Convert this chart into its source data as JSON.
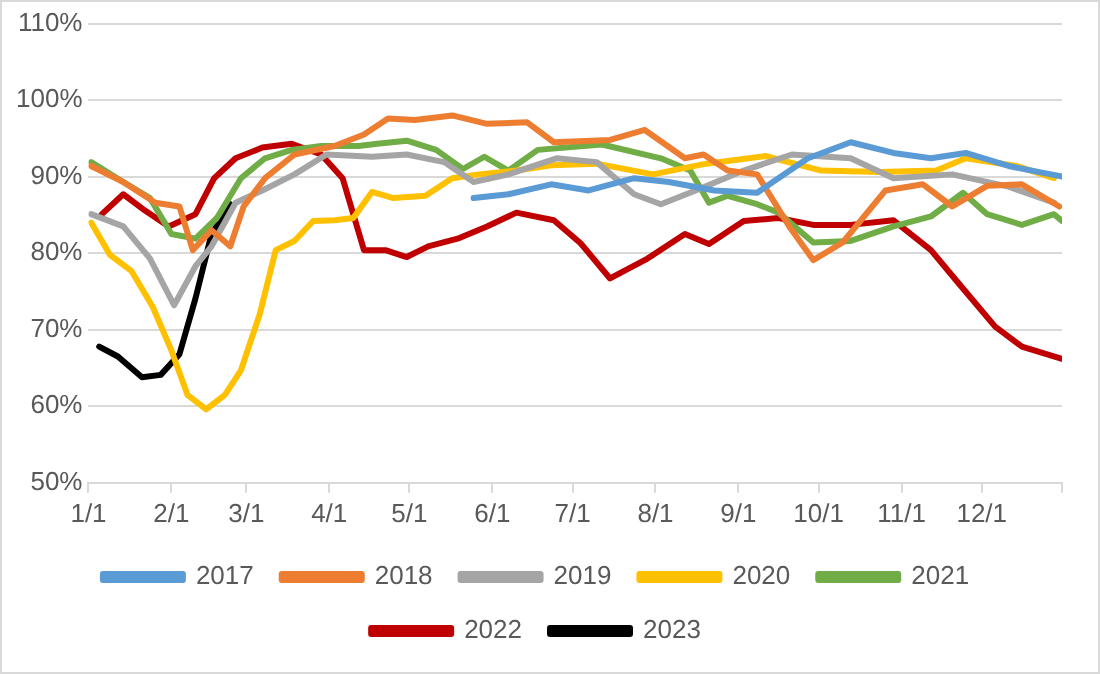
{
  "chart_data": {
    "type": "line",
    "xlim": [
      "--01-01",
      "--12-31"
    ],
    "xticks": [
      {
        "value": "--01-01",
        "label": "1/1"
      },
      {
        "value": "--02-01",
        "label": "2/1"
      },
      {
        "value": "--03-01",
        "label": "3/1"
      },
      {
        "value": "--04-01",
        "label": "4/1"
      },
      {
        "value": "--05-01",
        "label": "5/1"
      },
      {
        "value": "--06-01",
        "label": "6/1"
      },
      {
        "value": "--07-01",
        "label": "7/1"
      },
      {
        "value": "--08-01",
        "label": "8/1"
      },
      {
        "value": "--09-01",
        "label": "9/1"
      },
      {
        "value": "--10-01",
        "label": "10/1"
      },
      {
        "value": "--11-01",
        "label": "11/1"
      },
      {
        "value": "--12-01",
        "label": "12/1"
      },
      {
        "value": "--12-31",
        "label": null
      }
    ],
    "ylim": [
      50,
      110
    ],
    "yticks": [
      {
        "value": 50,
        "label": "50%"
      },
      {
        "value": 60,
        "label": "60%"
      },
      {
        "value": 70,
        "label": "70%"
      },
      {
        "value": 80,
        "label": "80%"
      },
      {
        "value": 90,
        "label": "90%"
      },
      {
        "value": 100,
        "label": "100%"
      },
      {
        "value": 110,
        "label": "110%"
      }
    ],
    "grid": "y",
    "legend": "bottom",
    "marker": "none",
    "line_style": "solid",
    "series": [
      {
        "name": "2017",
        "color": "#5b9bd5",
        "x": [
          "--05-25",
          "--06-07",
          "--06-23",
          "--07-07",
          "--07-24",
          "--08-06",
          "--08-23",
          "--09-08",
          "--09-27",
          "--10-13",
          "--10-29",
          "--11-12",
          "--11-25",
          "--12-11",
          "--12-31"
        ],
        "values": [
          87.2,
          87.7,
          89.0,
          88.2,
          89.8,
          89.3,
          88.2,
          87.9,
          92.4,
          94.5,
          93.1,
          92.4,
          93.1,
          91.4,
          90.0
        ]
      },
      {
        "name": "2018",
        "color": "#ed7d31",
        "x": [
          "--01-02",
          "--01-14",
          "--01-26",
          "--02-04",
          "--02-09",
          "--02-16",
          "--02-23",
          "--02-28",
          "--03-08",
          "--03-19",
          "--04-03",
          "--04-14",
          "--04-23",
          "--05-03",
          "--05-17",
          "--05-30",
          "--06-14",
          "--06-24",
          "--07-15",
          "--07-28",
          "--08-12",
          "--08-19",
          "--08-28",
          "--09-08",
          "--09-20",
          "--09-29",
          "--10-10",
          "--10-26",
          "--11-09",
          "--11-20",
          "--12-03",
          "--12-16",
          "--12-30"
        ],
        "values": [
          91.4,
          89.3,
          86.6,
          86.1,
          80.4,
          83.0,
          80.9,
          86.1,
          89.8,
          92.9,
          94.0,
          95.5,
          97.6,
          97.4,
          98.0,
          96.9,
          97.1,
          94.5,
          94.8,
          96.1,
          92.4,
          92.9,
          90.8,
          90.3,
          83.5,
          79.1,
          81.4,
          88.2,
          89.0,
          86.1,
          88.8,
          89.0,
          86.1
        ]
      },
      {
        "name": "2019",
        "color": "#a5a5a5",
        "x": [
          "--01-02",
          "--01-14",
          "--01-24",
          "--02-02",
          "--02-10",
          "--02-16",
          "--02-25",
          "--03-07",
          "--03-19",
          "--03-31",
          "--04-17",
          "--04-30",
          "--05-14",
          "--05-25",
          "--06-07",
          "--06-25",
          "--07-10",
          "--07-24",
          "--08-03",
          "--08-16",
          "--09-03",
          "--09-21",
          "--10-13",
          "--10-29",
          "--11-20",
          "--12-11",
          "--12-28"
        ],
        "values": [
          85.1,
          83.5,
          79.3,
          73.2,
          78.3,
          80.9,
          86.6,
          88.2,
          90.3,
          92.9,
          92.6,
          92.9,
          91.9,
          89.3,
          90.3,
          92.4,
          91.9,
          87.7,
          86.4,
          88.2,
          90.8,
          92.9,
          92.4,
          89.8,
          90.3,
          88.7,
          86.6
        ]
      },
      {
        "name": "2020",
        "color": "#ffc000",
        "x": [
          "--01-02",
          "--01-09",
          "--01-17",
          "--01-25",
          "--02-01",
          "--02-07",
          "--02-14",
          "--02-21",
          "--02-27",
          "--03-06",
          "--03-12",
          "--03-19",
          "--03-26",
          "--04-03",
          "--04-10",
          "--04-17",
          "--04-25",
          "--05-07",
          "--05-17",
          "--05-27",
          "--06-10",
          "--06-23",
          "--07-10",
          "--07-31",
          "--08-20",
          "--09-11",
          "--10-02",
          "--10-24",
          "--11-14",
          "--11-25",
          "--12-14",
          "--12-28"
        ],
        "values": [
          84.0,
          79.8,
          77.7,
          73.0,
          67.3,
          61.5,
          59.6,
          61.5,
          64.7,
          72.0,
          80.4,
          81.6,
          84.2,
          84.3,
          84.6,
          88.0,
          87.2,
          87.5,
          89.8,
          90.3,
          90.8,
          91.5,
          91.7,
          90.3,
          91.7,
          92.7,
          90.8,
          90.6,
          90.8,
          92.4,
          91.4,
          89.8
        ]
      },
      {
        "name": "2021",
        "color": "#70ad47",
        "x": [
          "--01-02",
          "--01-14",
          "--01-24",
          "--02-01",
          "--02-10",
          "--02-18",
          "--02-27",
          "--03-08",
          "--03-18",
          "--03-29",
          "--04-12",
          "--04-19",
          "--04-30",
          "--05-11",
          "--05-21",
          "--05-29",
          "--06-07",
          "--06-18",
          "--07-12",
          "--08-03",
          "--08-14",
          "--08-21",
          "--08-28",
          "--09-08",
          "--09-16",
          "--09-29",
          "--10-13",
          "--10-29",
          "--11-12",
          "--11-24",
          "--12-03",
          "--12-16",
          "--12-28",
          "--12-31"
        ],
        "values": [
          91.9,
          89.3,
          87.2,
          82.5,
          81.9,
          84.6,
          89.8,
          92.4,
          93.5,
          94.0,
          94.0,
          94.3,
          94.7,
          93.5,
          91.0,
          92.6,
          90.8,
          93.5,
          94.2,
          92.4,
          90.8,
          86.6,
          87.5,
          86.4,
          85.3,
          81.4,
          81.6,
          83.5,
          84.8,
          87.9,
          85.1,
          83.7,
          85.1,
          84.2
        ]
      },
      {
        "name": "2022",
        "color": "#c00000",
        "x": [
          "--01-06",
          "--01-14",
          "--01-22",
          "--01-31",
          "--02-10",
          "--02-17",
          "--02-25",
          "--03-07",
          "--03-18",
          "--03-29",
          "--04-06",
          "--04-14",
          "--04-22",
          "--04-30",
          "--05-08",
          "--05-19",
          "--05-30",
          "--06-10",
          "--06-24",
          "--07-04",
          "--07-15",
          "--07-29",
          "--08-12",
          "--08-21",
          "--09-03",
          "--09-16",
          "--09-29",
          "--10-13",
          "--10-29",
          "--11-12",
          "--11-22",
          "--12-06",
          "--12-16",
          "--12-31"
        ],
        "values": [
          85.1,
          87.7,
          85.6,
          83.5,
          85.1,
          89.8,
          92.4,
          93.8,
          94.3,
          92.9,
          89.8,
          80.4,
          80.4,
          79.5,
          80.9,
          81.9,
          83.5,
          85.3,
          84.3,
          81.3,
          76.7,
          79.3,
          82.5,
          81.2,
          84.2,
          84.6,
          83.7,
          83.7,
          84.3,
          80.4,
          76.2,
          70.4,
          67.8,
          66.2
        ]
      },
      {
        "name": "2023",
        "color": "#000000",
        "x": [
          "--01-05",
          "--01-12",
          "--01-21",
          "--01-28",
          "--02-04",
          "--02-10",
          "--02-16",
          "--02-23"
        ],
        "values": [
          67.8,
          66.5,
          63.8,
          64.1,
          66.8,
          74.1,
          82.5,
          86.4
        ]
      }
    ]
  }
}
